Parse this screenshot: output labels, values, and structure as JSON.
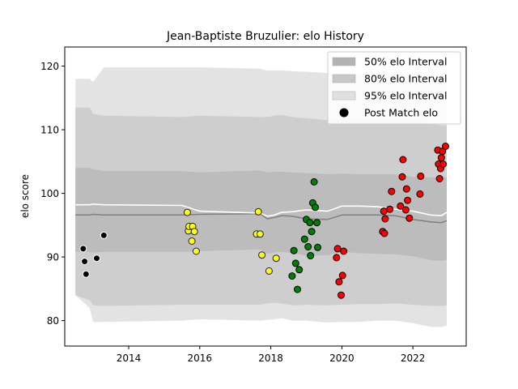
{
  "chart_data": {
    "type": "scatter",
    "title": "Jean-Baptiste Bruzulier: elo History",
    "xlabel": "",
    "ylabel": "elo score",
    "xlim": [
      2012.2,
      2023.5
    ],
    "ylim": [
      76,
      123
    ],
    "x_ticks": [
      2014,
      2016,
      2018,
      2020,
      2022
    ],
    "y_ticks": [
      80,
      90,
      100,
      110,
      120
    ],
    "grid": false,
    "legend_position": "top-right",
    "legend": [
      {
        "label": "50% elo Interval",
        "kind": "band",
        "color": "#b0b0b0"
      },
      {
        "label": "80% elo Interval",
        "kind": "band",
        "color": "#c8c8c8"
      },
      {
        "label": "95% elo Interval",
        "kind": "band",
        "color": "#e0e0e0"
      },
      {
        "label": "Post Match elo",
        "kind": "marker",
        "color": "#000000"
      }
    ],
    "bands": {
      "x": [
        2012.5,
        2012.9,
        2013.0,
        2013.3,
        2015.5,
        2016.0,
        2017.7,
        2017.9,
        2018.1,
        2018.3,
        2018.6,
        2019.0,
        2019.6,
        2020.0,
        2020.5,
        2021.0,
        2021.5,
        2022.0,
        2022.5,
        2022.8,
        2022.95
      ],
      "mean": [
        96.6,
        96.6,
        96.7,
        96.6,
        96.6,
        96.7,
        96.8,
        96.0,
        96.2,
        96.5,
        96.4,
        96.0,
        95.9,
        96.6,
        96.6,
        96.6,
        96.5,
        95.9,
        95.5,
        95.4,
        95.7
      ],
      "white": [
        98.2,
        98.2,
        98.3,
        98.2,
        98.1,
        97.2,
        96.9,
        96.4,
        96.6,
        97.0,
        97.1,
        97.4,
        97.2,
        98.0,
        98.0,
        97.9,
        97.5,
        97.2,
        96.6,
        96.5,
        97.0
      ],
      "upper50": [
        104,
        104,
        103.8,
        103.5,
        103.5,
        103.3,
        103.6,
        103.3,
        103.4,
        103.4,
        103.3,
        103.2,
        103,
        103.1,
        103,
        103,
        103,
        102.6,
        102.5,
        102.5,
        102.5
      ],
      "lower50": [
        90.8,
        90.8,
        90.7,
        90.8,
        90.8,
        90.9,
        91.2,
        90.5,
        90.7,
        90.8,
        90.6,
        90.2,
        90.3,
        90.8,
        90.6,
        90.5,
        90.4,
        90.1,
        89.5,
        89.4,
        89.5
      ],
      "upper80": [
        113.5,
        113.5,
        112.5,
        112.2,
        112,
        112.2,
        112,
        112,
        112.2,
        112.3,
        112,
        111.8,
        111.5,
        111.5,
        111.5,
        111.6,
        111.5,
        111.4,
        111,
        110.7,
        110.7
      ],
      "lower80": [
        84,
        83.2,
        82.4,
        82.3,
        82.5,
        82.5,
        82.5,
        82.7,
        82.8,
        82.7,
        82.4,
        82.5,
        82.4,
        82.5,
        82.6,
        82.6,
        82.7,
        82.5,
        82.3,
        82.3,
        82.4
      ],
      "upper95": [
        118,
        118,
        117.5,
        119.8,
        119.8,
        119.8,
        119.6,
        119.3,
        119.3,
        119.3,
        119.2,
        119.1,
        118.9,
        118.9,
        118.8,
        118.8,
        118.9,
        118.8,
        118.6,
        118.4,
        118.4
      ],
      "lower95": [
        84,
        82,
        79.8,
        79.8,
        80,
        80.2,
        80,
        80.1,
        80.2,
        80.4,
        80,
        80,
        79.7,
        79.8,
        79.8,
        80,
        80,
        79.6,
        79.0,
        79,
        79.2
      ]
    },
    "series": [
      {
        "color": "#000000",
        "edge": "#ffffff",
        "points": [
          [
            2012.72,
            91.3
          ],
          [
            2012.76,
            89.3
          ],
          [
            2012.8,
            87.3
          ],
          [
            2013.1,
            89.8
          ],
          [
            2013.3,
            93.4
          ]
        ]
      },
      {
        "color": "#ffff00",
        "edge": "#1a1a66",
        "points": [
          [
            2015.65,
            97.0
          ],
          [
            2015.68,
            94.1
          ],
          [
            2015.7,
            94.8
          ],
          [
            2015.78,
            92.5
          ],
          [
            2015.8,
            94.8
          ],
          [
            2015.85,
            94.0
          ],
          [
            2015.9,
            90.9
          ],
          [
            2017.6,
            93.6
          ],
          [
            2017.65,
            97.1
          ],
          [
            2017.7,
            93.6
          ],
          [
            2017.75,
            90.3
          ],
          [
            2017.95,
            87.8
          ],
          [
            2018.15,
            89.8
          ]
        ]
      },
      {
        "color": "#008000",
        "edge": "#000000",
        "points": [
          [
            2018.6,
            87.0
          ],
          [
            2018.65,
            91.0
          ],
          [
            2018.7,
            89.0
          ],
          [
            2018.75,
            84.9
          ],
          [
            2018.8,
            88.0
          ],
          [
            2018.95,
            92.8
          ],
          [
            2019.0,
            95.9
          ],
          [
            2019.05,
            91.6
          ],
          [
            2019.1,
            95.4
          ],
          [
            2019.12,
            90.2
          ],
          [
            2019.15,
            94.0
          ],
          [
            2019.18,
            98.5
          ],
          [
            2019.22,
            101.8
          ],
          [
            2019.25,
            97.8
          ],
          [
            2019.3,
            95.4
          ],
          [
            2019.32,
            91.5
          ]
        ]
      },
      {
        "color": "#ff0000",
        "edge": "#000000",
        "points": [
          [
            2019.85,
            89.9
          ],
          [
            2019.88,
            91.3
          ],
          [
            2019.92,
            86.1
          ],
          [
            2019.98,
            84.0
          ],
          [
            2020.02,
            87.1
          ],
          [
            2020.05,
            90.9
          ],
          [
            2021.15,
            94.0
          ],
          [
            2021.18,
            97.2
          ],
          [
            2021.2,
            93.7
          ],
          [
            2021.22,
            96.0
          ],
          [
            2021.35,
            97.5
          ],
          [
            2021.4,
            100.3
          ],
          [
            2021.65,
            98.0
          ],
          [
            2021.7,
            102.6
          ],
          [
            2021.72,
            105.3
          ],
          [
            2021.8,
            97.4
          ],
          [
            2021.82,
            100.7
          ],
          [
            2021.85,
            98.9
          ],
          [
            2021.9,
            96.1
          ],
          [
            2022.2,
            99.9
          ],
          [
            2022.22,
            102.7
          ],
          [
            2022.7,
            106.8
          ],
          [
            2022.72,
            104.6
          ],
          [
            2022.75,
            102.3
          ],
          [
            2022.78,
            103.9
          ],
          [
            2022.8,
            105.6
          ],
          [
            2022.83,
            106.6
          ],
          [
            2022.85,
            104.6
          ],
          [
            2022.92,
            107.4
          ]
        ]
      }
    ]
  }
}
